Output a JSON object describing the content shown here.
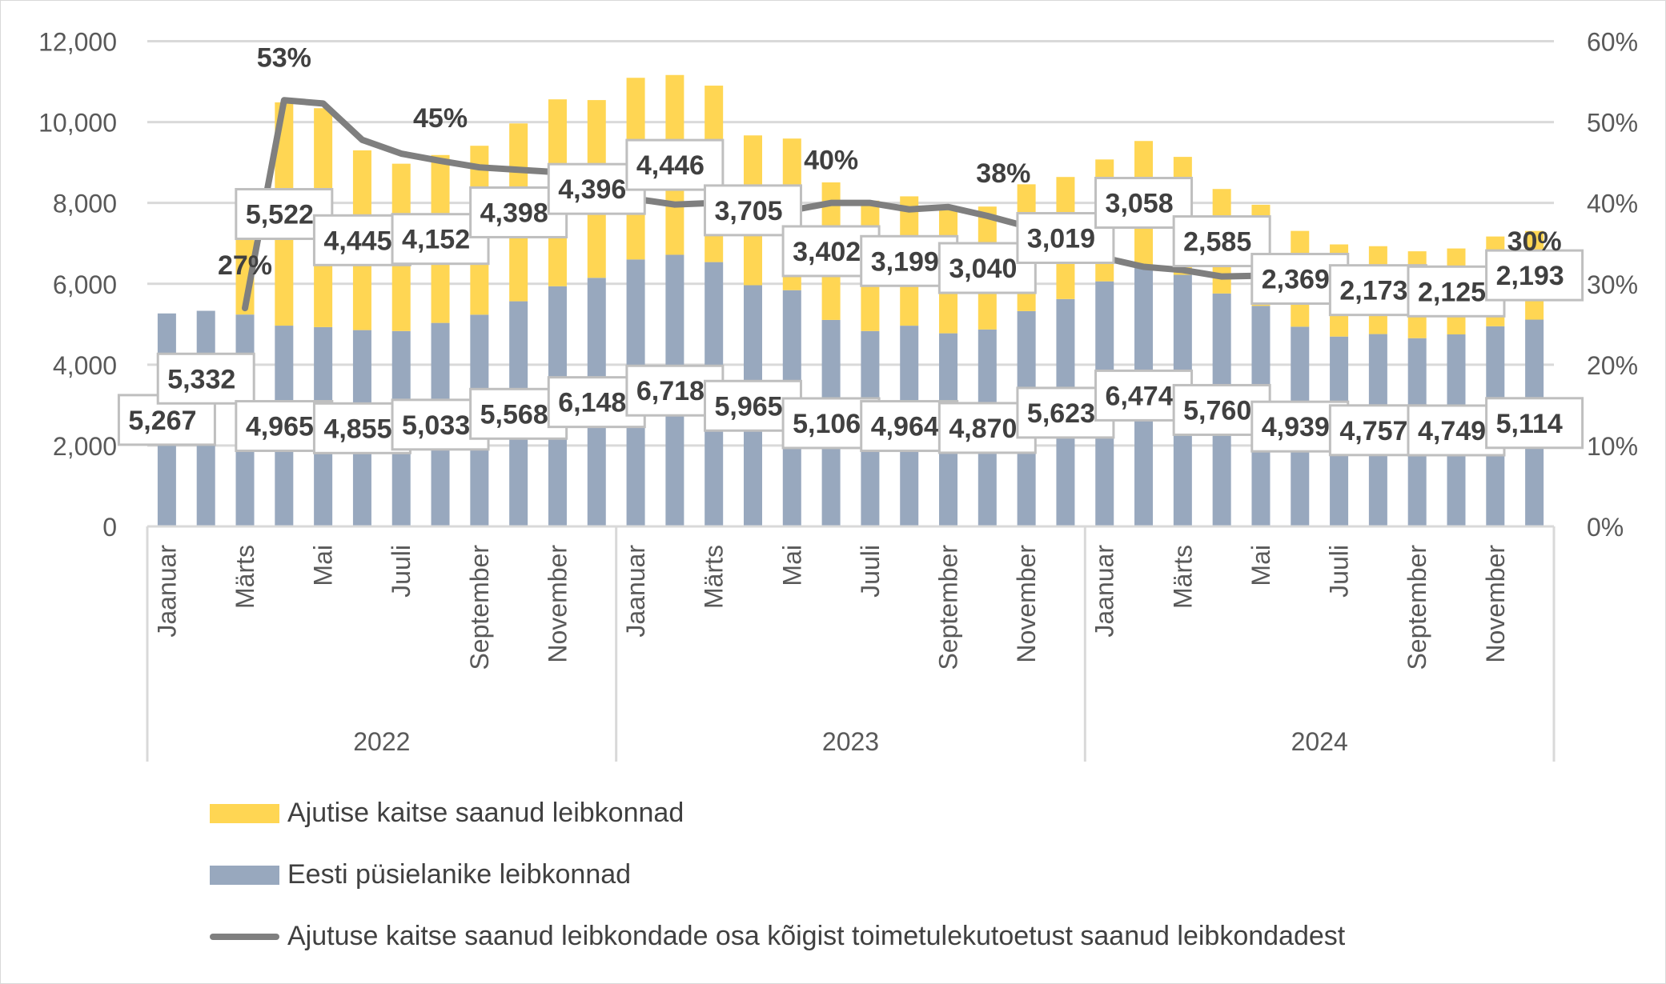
{
  "chart_data": {
    "type": "bar",
    "stacked": true,
    "years": [
      "2022",
      "2023",
      "2024"
    ],
    "month_labels": [
      "Jaanuar",
      "",
      "Märts",
      "",
      "Mai",
      "",
      "Juuli",
      "",
      "September",
      "",
      "November",
      ""
    ],
    "y_left": {
      "min": 0,
      "max": 12000,
      "ticks": [
        "0",
        "2,000",
        "4,000",
        "6,000",
        "8,000",
        "10,000",
        "12,000"
      ]
    },
    "y_right": {
      "min": 0,
      "max": 60,
      "ticks": [
        "0%",
        "10%",
        "20%",
        "30%",
        "40%",
        "50%",
        "60%"
      ]
    },
    "grid": true,
    "legend_position": "bottom",
    "series": [
      {
        "name": "Eesti püsielanike leibkonnad",
        "type": "bar",
        "color": "#98A8BE",
        "values": [
          5267,
          5332,
          5240,
          4965,
          4929,
          4855,
          4832,
          5033,
          5236,
          5568,
          5939,
          6148,
          6602,
          6718,
          6537,
          5965,
          5842,
          5106,
          4832,
          4964,
          4776,
          4870,
          5325,
          5623,
          6061,
          6474,
          6222,
          5760,
          5455,
          4939,
          4695,
          4757,
          4655,
          4749,
          4950,
          5114
        ],
        "labels": [
          "5,267",
          "5,332",
          "",
          "4,965",
          "",
          "4,855",
          "",
          "5,033",
          "",
          "5,568",
          "",
          "6,148",
          "",
          "6,718",
          "",
          "5,965",
          "",
          "5,106",
          "",
          "4,964",
          "",
          "4,870",
          "",
          "5,623",
          "",
          "6,474",
          "",
          "5,760",
          "",
          "4,939",
          "",
          "4,757",
          "",
          "4,749",
          "",
          "5,114"
        ]
      },
      {
        "name": "Ajutise kaitse saanud leibkonnad",
        "type": "bar",
        "color": "#FFD653",
        "values": [
          0,
          0,
          1940,
          5522,
          5414,
          4445,
          4138,
          4152,
          4178,
          4398,
          4623,
          4396,
          4493,
          4446,
          4364,
          3705,
          3750,
          3402,
          3225,
          3199,
          3118,
          3040,
          3136,
          3019,
          3014,
          3058,
          2917,
          2585,
          2500,
          2369,
          2279,
          2173,
          2149,
          2125,
          2220,
          2193
        ],
        "labels": [
          "",
          "",
          "",
          "5,522",
          "",
          "4,445",
          "",
          "4,152",
          "",
          "4,398",
          "",
          "4,396",
          "",
          "4,446",
          "",
          "3,705",
          "",
          "3,402",
          "",
          "3,199",
          "",
          "3,040",
          "",
          "3,019",
          "",
          "3,058",
          "",
          "2,585",
          "",
          "2,369",
          "",
          "2,173",
          "",
          "2,125",
          "",
          "2,193"
        ]
      },
      {
        "name": "Ajutuse kaitse saanud leibkondade osa kõigist toimetulekutoetust saanud leibkondadest",
        "type": "line",
        "axis": "right",
        "color": "#7F7F7F",
        "values": [
          null,
          null,
          27,
          52.7,
          52.3,
          47.8,
          46.1,
          45.2,
          44.4,
          44.1,
          43.8,
          41.7,
          40.5,
          39.8,
          40.0,
          38.3,
          39.1,
          40.0,
          40.0,
          39.2,
          39.5,
          38.4,
          37.1,
          34.9,
          33.2,
          32.1,
          31.7,
          30.9,
          31.0,
          31.2,
          31.0,
          30.8,
          30.7,
          30.6,
          30.4,
          30.0
        ],
        "labels": [
          "",
          "",
          "27%",
          "53%",
          "",
          "",
          "",
          "45%",
          "",
          "",
          "",
          "",
          "",
          "",
          "",
          "",
          "",
          "40%",
          "",
          "",
          "",
          "38%",
          "",
          "",
          "",
          "",
          "",
          "",
          "",
          "",
          "",
          "",
          "",
          "",
          "",
          "30%"
        ]
      }
    ]
  },
  "legend": [
    {
      "label": "Ajutise kaitse saanud leibkonnad",
      "color": "#FFD653",
      "marker": "bar"
    },
    {
      "label": "Eesti püsielanike leibkonnad",
      "color": "#98A8BE",
      "marker": "bar"
    },
    {
      "label": "Ajutuse kaitse saanud leibkondade osa kõigist toimetulekutoetust saanud leibkondadest",
      "color": "#7F7F7F",
      "marker": "line"
    }
  ]
}
